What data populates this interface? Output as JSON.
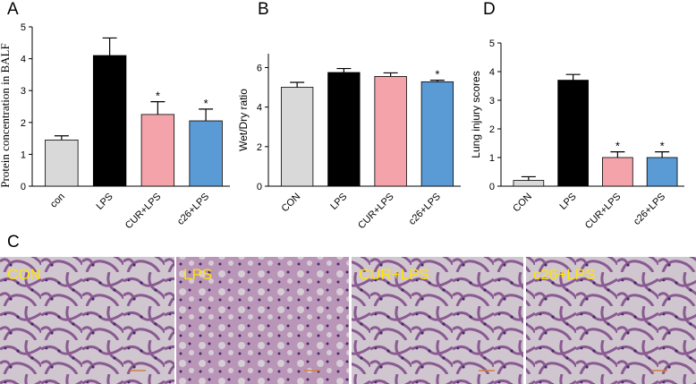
{
  "chart_data": [
    {
      "type": "bar",
      "panel_label": "A",
      "ylabel": "Protein concentration in BALF",
      "categories": [
        "con",
        "LPS",
        "CUR+LPS",
        "c26+LPS"
      ],
      "values": [
        1.45,
        4.1,
        2.25,
        2.05
      ],
      "errors": [
        0.13,
        0.55,
        0.4,
        0.37
      ],
      "annotations": [
        null,
        null,
        "*",
        "*"
      ],
      "colors": [
        "#d9d9d9",
        "#000000",
        "#f4a3aa",
        "#5b9bd5"
      ],
      "ylim": [
        0,
        5
      ],
      "yticks": [
        0,
        1,
        2,
        3,
        4,
        5
      ]
    },
    {
      "type": "bar",
      "panel_label": "B",
      "ylabel": "Wet/Dry ratio",
      "categories": [
        "CON",
        "LPS",
        "CUR+LPS",
        "c26+LPS"
      ],
      "values": [
        5.0,
        5.75,
        5.55,
        5.28
      ],
      "errors": [
        0.25,
        0.2,
        0.18,
        0.08
      ],
      "annotations": [
        null,
        null,
        null,
        "*"
      ],
      "colors": [
        "#d9d9d9",
        "#000000",
        "#f4a3aa",
        "#5b9bd5"
      ],
      "ylim": [
        0,
        6.7
      ],
      "yticks": [
        0,
        2,
        4,
        6
      ]
    },
    {
      "type": "bar",
      "panel_label": "D",
      "ylabel": "Lung injury scores",
      "categories": [
        "CON",
        "LPS",
        "CUR+LPS",
        "c26+LPS"
      ],
      "values": [
        0.2,
        3.7,
        1.0,
        1.0
      ],
      "errors": [
        0.13,
        0.2,
        0.2,
        0.2
      ],
      "annotations": [
        null,
        null,
        "*",
        "*"
      ],
      "colors": [
        "#d9d9d9",
        "#000000",
        "#f4a3aa",
        "#5b9bd5"
      ],
      "ylim": [
        0,
        5
      ],
      "yticks": [
        0,
        1,
        2,
        3,
        4,
        5
      ]
    }
  ],
  "micrographs": {
    "panel_label": "C",
    "labels": [
      "CON",
      "LPS",
      "CUR+LPS",
      "c26+LPS"
    ]
  }
}
